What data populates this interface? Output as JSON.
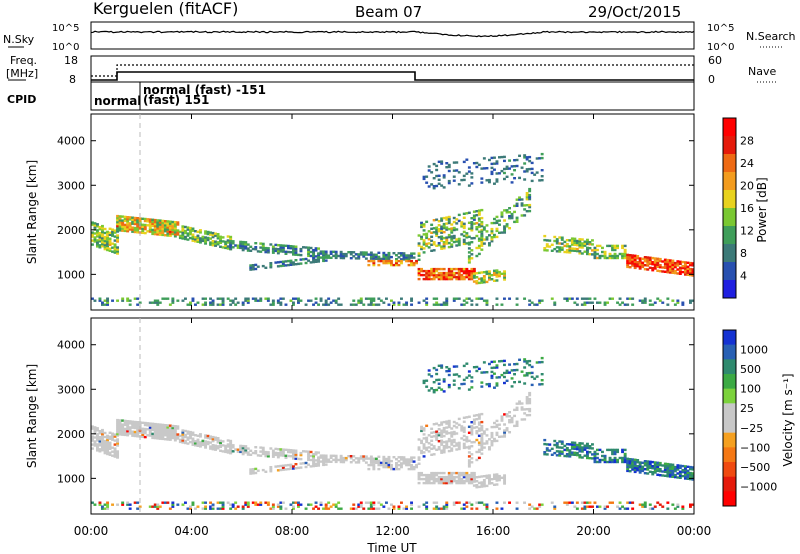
{
  "header": {
    "station": "Kerguelen (fitACF)",
    "beam": "Beam 07",
    "date": "29/Oct/2015"
  },
  "panels": {
    "nsky": {
      "label": "N.Sky",
      "ticks": [
        "10^5",
        "10^0"
      ],
      "right_label": "N.Search",
      "right_ticks": [
        "10^5",
        "10^0"
      ]
    },
    "freq": {
      "label_line1": "Freq.",
      "label_line2": "[MHz]",
      "ticks": [
        "18",
        "8"
      ],
      "right_label": "Nave",
      "right_ticks": [
        "60",
        "0"
      ]
    },
    "cpid": {
      "label": "CPID",
      "segments": [
        "normal",
        "normal (fast) -151",
        "(fast) 151"
      ]
    }
  },
  "colors": {
    "power_scale": [
      "#2020e0",
      "#2850b0",
      "#3c7a78",
      "#3f9e5a",
      "#7ac832",
      "#e8d21e",
      "#f39c1e",
      "#ee6a14",
      "#e51a0a",
      "#ff0000"
    ],
    "velocity_scale": [
      "#1432d2",
      "#2860b4",
      "#2f8a6e",
      "#3caa44",
      "#7cd23c",
      "#c8c8c8",
      "#c8c8c8",
      "#f5a020",
      "#f57814",
      "#f04a10",
      "#e51a0a",
      "#ff0000"
    ],
    "ground_scatter": "#c8c8c8"
  },
  "chart_data": [
    {
      "type": "heatmap",
      "name": "power",
      "ylabel": "Slant Range [km]",
      "yticks": [
        "1000",
        "2000",
        "3000",
        "4000"
      ],
      "ylim": [
        200,
        4600
      ],
      "xlim_hours": [
        0,
        24
      ],
      "colorbar_label": "Power [dB]",
      "colorbar_ticks": [
        "4",
        "8",
        "12",
        "16",
        "20",
        "24",
        "28"
      ],
      "colorbar_range": [
        0,
        32
      ]
    },
    {
      "type": "heatmap",
      "name": "velocity",
      "ylabel": "Slant Range [km]",
      "yticks": [
        "1000",
        "2000",
        "3000",
        "4000"
      ],
      "ylim": [
        200,
        4600
      ],
      "xlim_hours": [
        0,
        24
      ],
      "colorbar_label": "Velocity [m s⁻¹]",
      "colorbar_ticks": [
        "1000",
        "500",
        "100",
        "25",
        "−25",
        "−100",
        "−500",
        "−1000"
      ]
    }
  ],
  "xaxis": {
    "label": "Time UT",
    "ticks": [
      "00:00",
      "04:00",
      "08:00",
      "12:00",
      "16:00",
      "20:00",
      "00:00"
    ]
  }
}
